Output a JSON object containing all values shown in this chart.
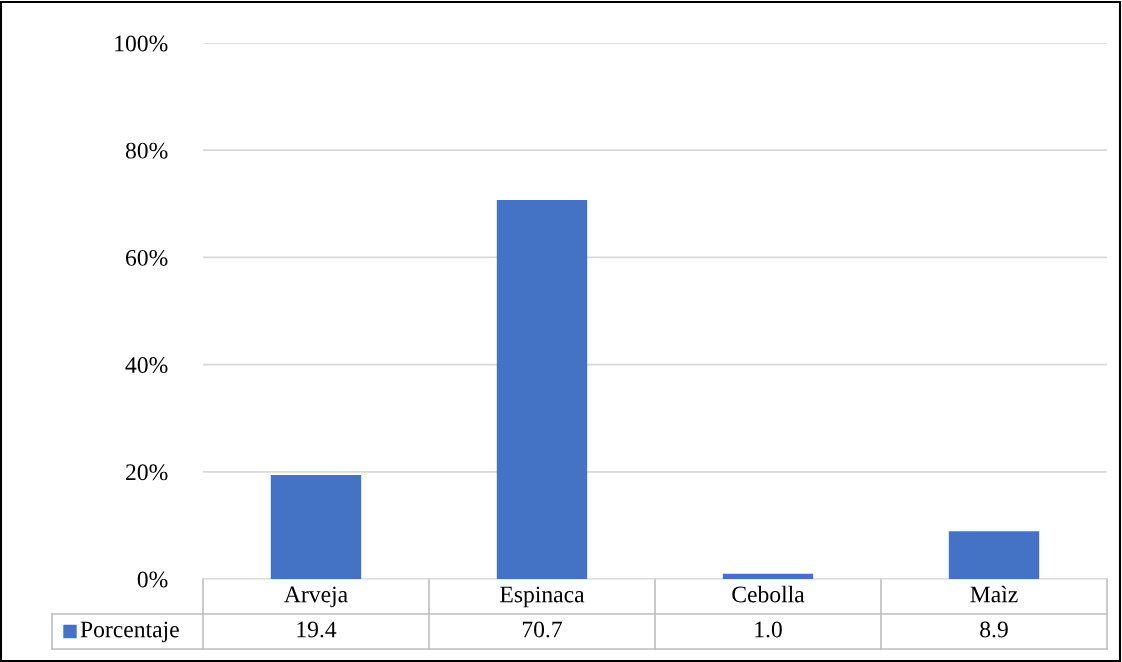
{
  "chart_data": {
    "type": "bar",
    "categories": [
      "Arveja",
      "Espinaca",
      "Cebolla",
      "Maìz"
    ],
    "series": [
      {
        "name": "Porcentaje",
        "color": "#4472c4",
        "values": [
          19.4,
          70.7,
          1.0,
          8.9
        ],
        "value_labels": [
          "19.4",
          "70.7",
          "1.0",
          "8.9"
        ]
      }
    ],
    "ylim": [
      0,
      100
    ],
    "yticks": [
      {
        "value": 0,
        "label": "0%"
      },
      {
        "value": 20,
        "label": "20%"
      },
      {
        "value": 40,
        "label": "40%"
      },
      {
        "value": 60,
        "label": "60%"
      },
      {
        "value": 80,
        "label": "80%"
      },
      {
        "value": 100,
        "label": "100%"
      }
    ],
    "grid": "y",
    "legend": "bottom"
  }
}
